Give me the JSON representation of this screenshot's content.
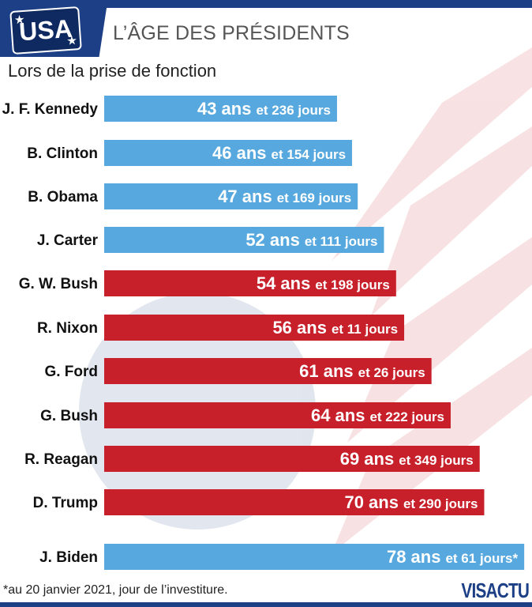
{
  "header": {
    "logo_text": "USA",
    "title": "L’ÂGE DES PRÉSIDENTS",
    "subtitle": "Lors de la prise de fonction"
  },
  "colors": {
    "navy": "#1c3f86",
    "democrat_blue": "#57a8de",
    "republican_red": "#c8202a"
  },
  "chart_data": {
    "type": "bar",
    "orientation": "horizontal",
    "title": "L’ÂGE DES PRÉSIDENTS",
    "subtitle": "Lors de la prise de fonction",
    "categories": [
      "J. F. Kennedy",
      "B. Clinton",
      "B. Obama",
      "J. Carter",
      "G. W. Bush",
      "R. Nixon",
      "G. Ford",
      "G. Bush",
      "R. Reagan",
      "D. Trump",
      "J. Biden"
    ],
    "series": [
      {
        "years": [
          43,
          46,
          47,
          52,
          54,
          56,
          61,
          64,
          69,
          70,
          78
        ],
        "days": [
          236,
          154,
          169,
          111,
          198,
          11,
          26,
          222,
          349,
          290,
          61
        ],
        "party": [
          "blue",
          "blue",
          "blue",
          "blue",
          "red",
          "red",
          "red",
          "red",
          "red",
          "red",
          "blue"
        ],
        "labels": [
          {
            "ans": "43 ans",
            "jours": "et 236 jours"
          },
          {
            "ans": "46 ans",
            "jours": "et 154 jours"
          },
          {
            "ans": "47 ans",
            "jours": "et 169 jours"
          },
          {
            "ans": "52 ans",
            "jours": "et 111 jours"
          },
          {
            "ans": "54 ans",
            "jours": "et 198 jours"
          },
          {
            "ans": "56 ans",
            "jours": "et 11 jours"
          },
          {
            "ans": "61 ans",
            "jours": "et 26 jours"
          },
          {
            "ans": "64 ans",
            "jours": "et 222 jours"
          },
          {
            "ans": "69 ans",
            "jours": "et 349 jours"
          },
          {
            "ans": "70 ans",
            "jours": "et 290 jours"
          },
          {
            "ans": "78 ans",
            "jours": "et 61 jours*"
          }
        ]
      }
    ],
    "grid": false,
    "legend": "none"
  },
  "footer": {
    "footnote": "*au 20 janvier 2021, jour de l’investiture.",
    "brand": "VISACTU"
  }
}
